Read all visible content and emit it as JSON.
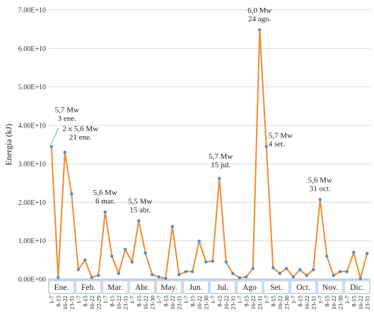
{
  "chart_data": {
    "type": "line",
    "ylabel": "Energía (kJ)",
    "ylim": [
      0,
      70000000000.0
    ],
    "y_ticks": [
      "0.00E+00",
      "1.00E+10",
      "2.00E+10",
      "3.00E+10",
      "4.00E+10",
      "5.00E+10",
      "6.00E+10",
      "7.00E+10"
    ],
    "y_tick_values": [
      0,
      10000000000.0,
      20000000000.0,
      30000000000.0,
      40000000000.0,
      50000000000.0,
      60000000000.0,
      70000000000.0
    ],
    "line_color": "#F08C2E",
    "marker_color": "#4A90C8",
    "months": [
      {
        "label": "Ene.",
        "periods": [
          "1-7",
          "8-15",
          "16-22",
          "23-31"
        ]
      },
      {
        "label": "Feb.",
        "periods": [
          "1-7",
          "8-15",
          "16-22",
          "22-29"
        ]
      },
      {
        "label": "Mar.",
        "periods": [
          "1-7",
          "8-15",
          "16-22",
          "23-31"
        ]
      },
      {
        "label": "Abr.",
        "periods": [
          "1-7",
          "8-15",
          "16-22",
          "23-30"
        ]
      },
      {
        "label": "May.",
        "periods": [
          "1-7",
          "8-15",
          "16-22",
          "23-31"
        ]
      },
      {
        "label": "Jun.",
        "periods": [
          "1-7",
          "8-15",
          "16-22",
          "23-30"
        ]
      },
      {
        "label": "Jul.",
        "periods": [
          "1-7",
          "8-15",
          "16-22",
          "23-31"
        ]
      },
      {
        "label": "Ago",
        "periods": [
          "1-7",
          "8-15",
          "16-22",
          "23-31"
        ]
      },
      {
        "label": "Set.",
        "periods": [
          "1-7",
          "8-15",
          "16-22",
          "23-30"
        ]
      },
      {
        "label": "Oct.",
        "periods": [
          "1-7",
          "8-15",
          "16-22",
          "23-31"
        ]
      },
      {
        "label": "Nov.",
        "periods": [
          "1-7",
          "8-15",
          "16-22",
          "23-30"
        ]
      },
      {
        "label": "Dic.",
        "periods": [
          "1-7",
          "8-15",
          "16-22",
          "23-31"
        ]
      }
    ],
    "values": [
      34500000000.0,
      500000000.0,
      33000000000.0,
      22200000000.0,
      2500000000.0,
      5000000000.0,
      500000000.0,
      1000000000.0,
      17500000000.0,
      6000000000.0,
      1500000000.0,
      7800000000.0,
      4500000000.0,
      15200000000.0,
      6800000000.0,
      1200000000.0,
      600000000.0,
      200000000.0,
      13700000000.0,
      1200000000.0,
      2000000000.0,
      2000000000.0,
      9900000000.0,
      4500000000.0,
      4700000000.0,
      26200000000.0,
      4500000000.0,
      1500000000.0,
      400000000.0,
      600000000.0,
      2800000000.0,
      64800000000.0,
      34500000000.0,
      3000000000.0,
      1500000000.0,
      2800000000.0,
      600000000.0,
      2500000000.0,
      1000000000.0,
      2500000000.0,
      20700000000.0,
      6000000000.0,
      1000000000.0,
      2000000000.0,
      2000000000.0,
      7000000000.0,
      200000000.0,
      6700000000.0
    ],
    "annotations": [
      {
        "lines": [
          "5,7 Mw",
          "3 ene."
        ],
        "index": 0
      },
      {
        "lines": [
          "2 x 5,6 Mw",
          "21 ene."
        ],
        "index": 2
      },
      {
        "lines": [
          "5,6 Mw",
          "6 mar."
        ],
        "index": 8
      },
      {
        "lines": [
          "5,5 Mw",
          "15 abr."
        ],
        "index": 13
      },
      {
        "lines": [
          "5,7 Mw",
          "15 jul."
        ],
        "index": 25
      },
      {
        "lines": [
          "6,0 Mw",
          "24 ago."
        ],
        "index": 31
      },
      {
        "lines": [
          "5,7 Mw",
          "4 set."
        ],
        "index": 32
      },
      {
        "lines": [
          "5,6 Mw",
          "31 oct."
        ],
        "index": 40
      }
    ]
  }
}
